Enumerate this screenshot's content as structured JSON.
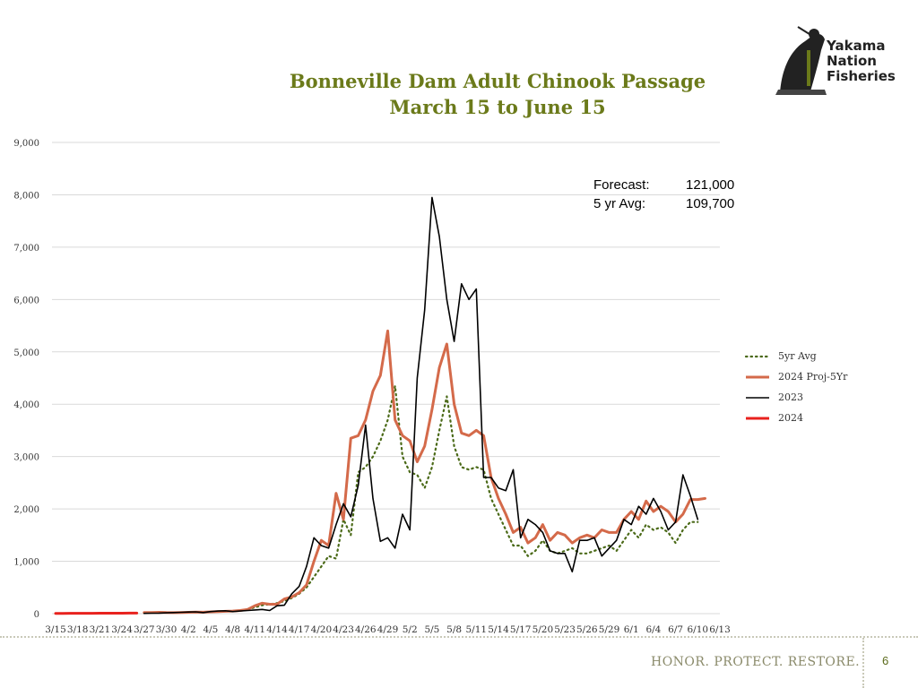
{
  "slide": {
    "logo_text": [
      "Yakama",
      "Nation",
      "Fisheries"
    ],
    "forecast": [
      {
        "label": "Forecast:",
        "value": "121,000"
      },
      {
        "label": "5 yr Avg:",
        "value": "109,700"
      }
    ],
    "tagline": "HONOR. PROTECT. RESTORE.",
    "page_number": "6"
  },
  "chart_data": {
    "type": "line",
    "title": "Bonneville Dam Adult Chinook Passage",
    "subtitle": "March 15 to June 15",
    "xlabel": "",
    "ylabel": "",
    "ylim": [
      0,
      9000
    ],
    "yticks": [
      0,
      1000,
      2000,
      3000,
      4000,
      5000,
      6000,
      7000,
      8000,
      9000
    ],
    "ytick_labels": [
      "0",
      "1,000",
      "2,000",
      "3,000",
      "4,000",
      "5,000",
      "6,000",
      "7,000",
      "8,000",
      "9,000"
    ],
    "grid": true,
    "legend_position": "right",
    "x_tick_labels": [
      "3/15",
      "3/18",
      "3/21",
      "3/24",
      "3/27",
      "3/30",
      "4/2",
      "4/5",
      "4/8",
      "4/11",
      "4/14",
      "4/17",
      "4/20",
      "4/23",
      "4/26",
      "4/29",
      "5/2",
      "5/5",
      "5/8",
      "5/11",
      "5/14",
      "5/17",
      "5/20",
      "5/23",
      "5/26",
      "5/29",
      "6/1",
      "6/4",
      "6/7",
      "6/10",
      "6/13"
    ],
    "series": [
      {
        "name": "5yr Avg",
        "color": "#4b6a18",
        "style": "dotted",
        "start_day": 12,
        "values": [
          20,
          22,
          25,
          20,
          18,
          22,
          25,
          30,
          28,
          35,
          40,
          45,
          50,
          60,
          80,
          120,
          160,
          180,
          200,
          240,
          300,
          380,
          500,
          700,
          900,
          1100,
          1050,
          1800,
          1500,
          2700,
          2800,
          3000,
          3300,
          3700,
          4350,
          3000,
          2700,
          2650,
          2400,
          2800,
          3500,
          4150,
          3200,
          2800,
          2750,
          2800,
          2750,
          2200,
          1900,
          1600,
          1300,
          1300,
          1100,
          1200,
          1400,
          1200,
          1150,
          1200,
          1250,
          1150,
          1150,
          1200,
          1250,
          1300,
          1200,
          1400,
          1600,
          1450,
          1700,
          1600,
          1650,
          1550,
          1350,
          1600,
          1750,
          1750
        ]
      },
      {
        "name": "2024 Proj-5Yr",
        "color": "#d46a4a",
        "style": "solid",
        "start_day": 12,
        "values": [
          20,
          22,
          25,
          20,
          18,
          22,
          25,
          30,
          28,
          35,
          40,
          45,
          50,
          60,
          80,
          150,
          200,
          180,
          180,
          280,
          320,
          400,
          550,
          1000,
          1400,
          1300,
          2300,
          1800,
          3350,
          3400,
          3700,
          4250,
          4550,
          5400,
          3700,
          3400,
          3300,
          2900,
          3200,
          3900,
          4700,
          5150,
          4000,
          3450,
          3400,
          3500,
          3400,
          2600,
          2200,
          1900,
          1550,
          1650,
          1350,
          1450,
          1700,
          1400,
          1550,
          1500,
          1350,
          1450,
          1500,
          1450,
          1600,
          1550,
          1550,
          1800,
          1950,
          1800,
          2150,
          1950,
          2050,
          1950,
          1750,
          1900,
          2180,
          2180,
          2200
        ]
      },
      {
        "name": "2023",
        "color": "#000000",
        "style": "solid",
        "start_day": 12,
        "values": [
          5,
          8,
          10,
          15,
          20,
          25,
          30,
          35,
          20,
          40,
          50,
          55,
          40,
          50,
          60,
          70,
          80,
          60,
          150,
          160,
          380,
          520,
          900,
          1450,
          1300,
          1250,
          1700,
          2100,
          1850,
          2450,
          3600,
          2200,
          1380,
          1450,
          1250,
          1900,
          1600,
          4500,
          5800,
          7950,
          7200,
          6000,
          5200,
          6300,
          6000,
          6200,
          2600,
          2600,
          2400,
          2350,
          2750,
          1450,
          1800,
          1700,
          1550,
          1200,
          1150,
          1150,
          800,
          1400,
          1400,
          1450,
          1100,
          1250,
          1400,
          1800,
          1700,
          2050,
          1900,
          2200,
          1950,
          1600,
          1750,
          2650,
          2250,
          1800
        ]
      },
      {
        "name": "2024",
        "color": "#e8221e",
        "style": "solid",
        "start_day": 0,
        "values": [
          5,
          5,
          6,
          6,
          7,
          7,
          8,
          8,
          9,
          9,
          10,
          10
        ]
      }
    ]
  }
}
